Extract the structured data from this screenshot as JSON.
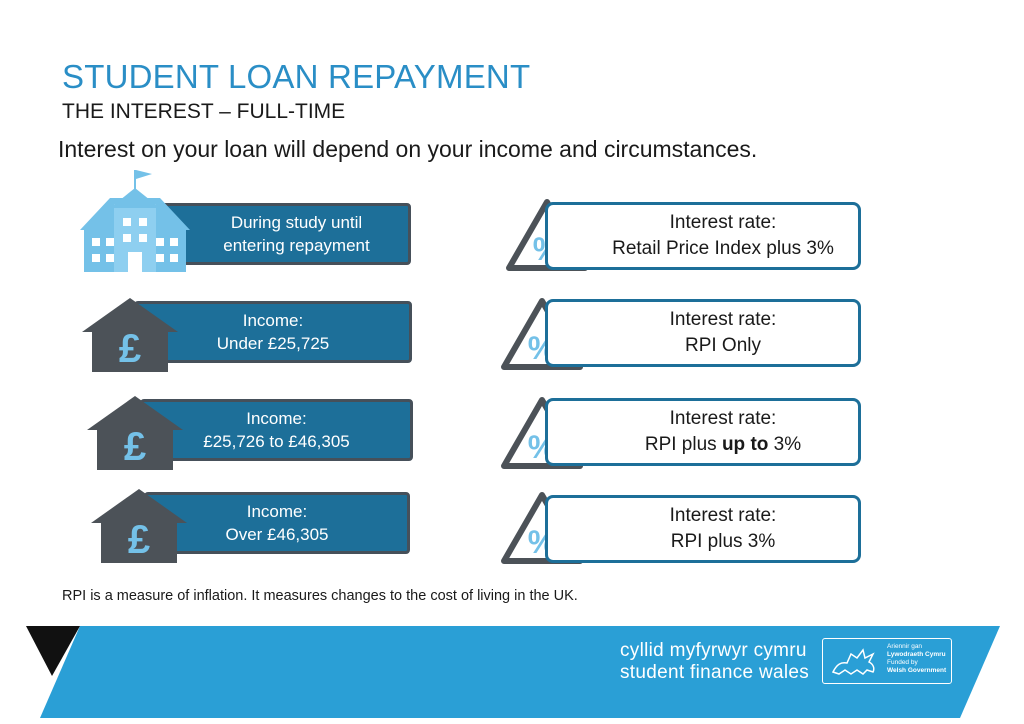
{
  "header": {
    "title": "STUDENT LOAN REPAYMENT",
    "subtitle": "THE INTEREST – FULL-TIME",
    "intro": "Interest on your loan will depend on your income and circumstances."
  },
  "rows": [
    {
      "left_icon": "school-building-icon",
      "left_line1": "During study until",
      "left_line2": "entering repayment",
      "right_line1": "Interest rate:",
      "right_line2": "Retail Price Index plus 3%"
    },
    {
      "left_icon": "pound-house-icon",
      "left_line1": "Income:",
      "left_line2": "Under £25,725",
      "right_line1": "Interest rate:",
      "right_line2": "RPI Only"
    },
    {
      "left_icon": "pound-house-icon",
      "left_line1": "Income:",
      "left_line2": "£25,726 to £46,305",
      "right_line1": "Interest rate:",
      "right_line2_pre": "RPI plus ",
      "right_line2_bold": "up to",
      "right_line2_post": " 3%"
    },
    {
      "left_icon": "pound-house-icon",
      "left_line1": "Income:",
      "left_line2": "Over £46,305",
      "right_line1": "Interest rate:",
      "right_line2": "RPI plus 3%"
    }
  ],
  "icons": {
    "pound_symbol": "£",
    "percent_symbol": "%",
    "percent_icon": "percent-warning-icon"
  },
  "footnote": "RPI is a measure of inflation. It measures changes to the cost of living in the UK.",
  "banner": {
    "brand_welsh": "cyllid myfyrwyr cymru",
    "brand_english": "student finance wales",
    "gov_line1": "Ariennir gan",
    "gov_line2": "Lywodraeth Cymru",
    "gov_line3": "Funded by",
    "gov_line4": "Welsh Government",
    "gov_icon": "welsh-dragon-icon"
  },
  "colors": {
    "title_blue": "#2a8ec6",
    "box_blue": "#1d6f99",
    "icon_light_blue": "#74c1e8",
    "icon_grey": "#4c5258",
    "banner_blue": "#2a9fd6"
  }
}
